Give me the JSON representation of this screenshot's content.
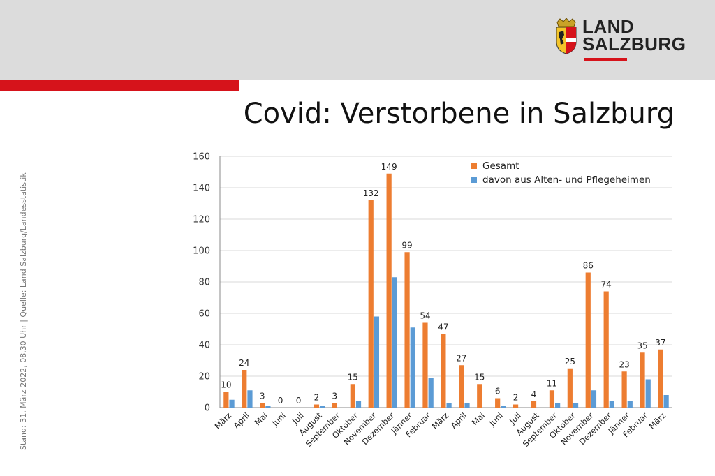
{
  "header": {
    "logo_line1": "LAND",
    "logo_line2": "SALZBURG"
  },
  "title": "Covid: Verstorbene in Salzburg",
  "side_note": "Stand: 31. März 2022, 08.30 Uhr | Quelle: Land Salzburg/Landesstatistik",
  "colors": {
    "header_band": "#dcdcdc",
    "accent_red": "#d6131b",
    "series_gesamt": "#ed7d31",
    "series_heime": "#5b9bd5",
    "gridline": "#d9d9d9"
  },
  "chart_data": {
    "type": "bar",
    "categories": [
      "März",
      "April",
      "Mai",
      "Juni",
      "Juli",
      "August",
      "September",
      "Oktober",
      "November",
      "Dezember",
      "Jänner",
      "Februar",
      "März",
      "April",
      "Mai",
      "Juni",
      "Juli",
      "August",
      "September",
      "Oktober",
      "November",
      "Dezember",
      "Jänner",
      "Februar",
      "März"
    ],
    "series": [
      {
        "name": "Gesamt",
        "values": [
          10,
          24,
          3,
          0,
          0,
          2,
          3,
          15,
          132,
          149,
          99,
          54,
          47,
          27,
          15,
          6,
          2,
          4,
          11,
          25,
          86,
          74,
          23,
          35,
          37
        ]
      },
      {
        "name": "davon aus Alten- und Pflegeheimen",
        "values": [
          5,
          11,
          1,
          0,
          0,
          1,
          0,
          4,
          58,
          83,
          51,
          19,
          3,
          3,
          0,
          1,
          0,
          0,
          3,
          3,
          11,
          4,
          4,
          18,
          8
        ]
      }
    ],
    "data_labels_series": "Gesamt",
    "ylim": [
      0,
      160
    ],
    "yticks": [
      0,
      20,
      40,
      60,
      80,
      100,
      120,
      140,
      160
    ],
    "grid": true,
    "legend_position": "top-right",
    "title": "",
    "xlabel": "",
    "ylabel": ""
  }
}
